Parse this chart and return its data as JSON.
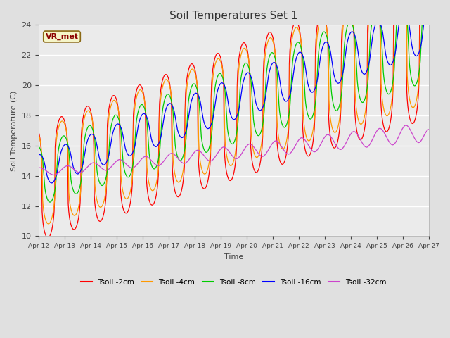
{
  "title": "Soil Temperatures Set 1",
  "xlabel": "Time",
  "ylabel": "Soil Temperature (C)",
  "ylim": [
    10,
    24
  ],
  "yticks": [
    10,
    12,
    14,
    16,
    18,
    20,
    22,
    24
  ],
  "fig_bg_color": "#e0e0e0",
  "plot_bg_color": "#ebebeb",
  "annotation_text": "VR_met",
  "annotation_color": "#8B0000",
  "annotation_bg": "#f5f5c8",
  "annotation_border": "#8B6914",
  "legend_labels": [
    "Tsoil -2cm",
    "Tsoil -4cm",
    "Tsoil -8cm",
    "Tsoil -16cm",
    "Tsoil -32cm"
  ],
  "line_colors": [
    "#ff0000",
    "#ff9900",
    "#00cc00",
    "#0000ff",
    "#cc44cc"
  ],
  "line_width": 0.9,
  "num_days": 15,
  "start_day": 12
}
